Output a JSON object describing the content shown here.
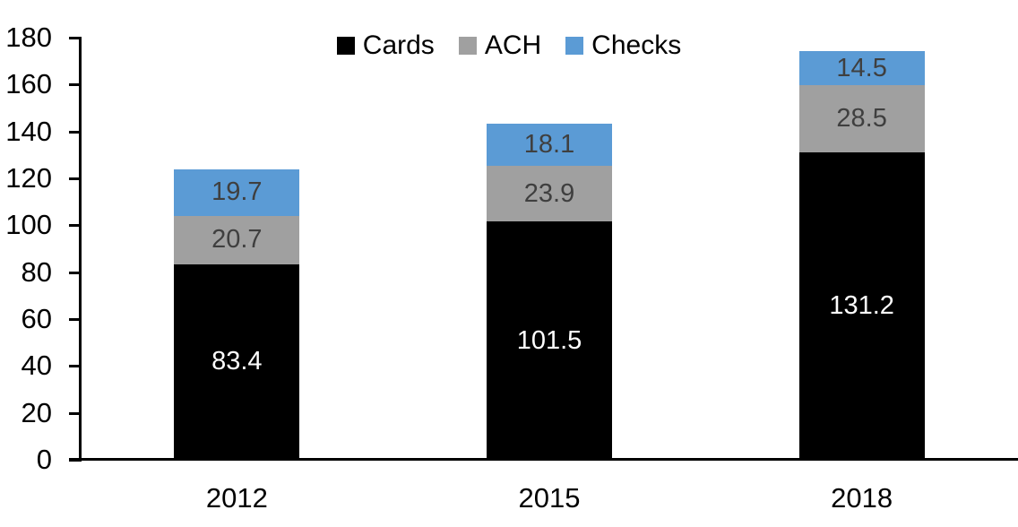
{
  "chart_data": {
    "type": "bar",
    "variant": "stacked-column",
    "title": "",
    "xlabel": "",
    "ylabel": "",
    "categories": [
      "2012",
      "2015",
      "2018"
    ],
    "series": [
      {
        "name": "Cards",
        "color": "#000000",
        "label_color": "#ffffff",
        "values": [
          83.4,
          101.5,
          131.2
        ]
      },
      {
        "name": "ACH",
        "color": "#a0a0a0",
        "label_color": "#3f3f3f",
        "values": [
          20.7,
          23.9,
          28.5
        ]
      },
      {
        "name": "Checks",
        "color": "#5b9bd5",
        "label_color": "#3f3f3f",
        "values": [
          19.7,
          18.1,
          14.5
        ]
      }
    ],
    "totals": [
      123.8,
      143.5,
      174.2
    ],
    "ylim": [
      0,
      180
    ],
    "ytick_step": 20,
    "ytick_labels": [
      "0",
      "20",
      "40",
      "60",
      "80",
      "100",
      "120",
      "140",
      "160",
      "180"
    ],
    "value_label_decimals": 1,
    "legend_position": "top-center",
    "legend_order": [
      "Cards",
      "ACH",
      "Checks"
    ],
    "grid": false,
    "axis_color": "#000000"
  }
}
